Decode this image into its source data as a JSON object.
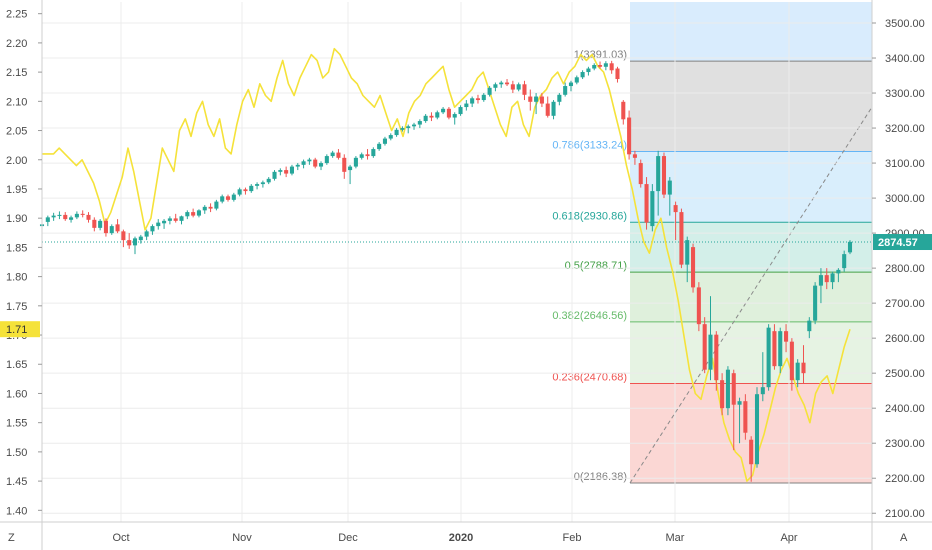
{
  "chart_data": {
    "type": "candlestick",
    "left_axis": {
      "ticks": [
        "2.25",
        "2.20",
        "2.15",
        "2.10",
        "2.05",
        "2.00",
        "1.95",
        "1.90",
        "1.85",
        "1.80",
        "1.75",
        "1.70",
        "1.65",
        "1.60",
        "1.55",
        "1.50",
        "1.45",
        "1.40"
      ],
      "range": [
        1.38,
        2.27
      ],
      "current_value_label": "1.71",
      "current_value": 1.71,
      "current_value_color": "#f5e23a"
    },
    "right_axis": {
      "ticks": [
        "3500.00",
        "3400.00",
        "3300.00",
        "3200.00",
        "3100.00",
        "3000.00",
        "2900.00",
        "2800.00",
        "2700.00",
        "2600.00",
        "2500.00",
        "2400.00",
        "2300.00",
        "2200.00",
        "2100.00"
      ],
      "range": [
        2075,
        3560
      ],
      "last_price_label": "2874.57",
      "last_price": 2874.57,
      "last_price_color": "#26a69a"
    },
    "x_axis": {
      "labels": [
        "Oct",
        "Nov",
        "Dec",
        "2020",
        "Feb",
        "Mar",
        "Apr"
      ]
    },
    "corner_labels": {
      "left": "Z",
      "right": "A"
    },
    "colors": {
      "up": "#26a69a",
      "down": "#ef5350",
      "overlay_line": "#f5e23a",
      "grid": "#ececec"
    },
    "fibonacci": {
      "levels": [
        {
          "ratio": 1,
          "price": 3391.03,
          "label": "1(3391.03)",
          "color": "#808080",
          "fill": "#e0e0e0"
        },
        {
          "ratio": 0.786,
          "price": 3133.24,
          "label": "0.786(3133.24)",
          "color": "#64b5f6",
          "fill": "#d9eefc"
        },
        {
          "ratio": 0.618,
          "price": 2930.86,
          "label": "0.618(2930.86)",
          "color": "#26a69a",
          "fill": "#d3efe9"
        },
        {
          "ratio": 0.5,
          "price": 2788.71,
          "label": "0.5(2788.71)",
          "color": "#43a047",
          "fill": "#dff0dc"
        },
        {
          "ratio": 0.382,
          "price": 2646.56,
          "label": "0.382(2646.56)",
          "color": "#66bb6a",
          "fill": "#e6f3e3"
        },
        {
          "ratio": 0.236,
          "price": 2470.68,
          "label": "0.236(2470.68)",
          "color": "#ef5350",
          "fill": "#fbd7d4"
        },
        {
          "ratio": 0,
          "price": 2186.38,
          "label": "0(2186.38)",
          "color": "#808080"
        }
      ],
      "upper_extension_fill": "#d9ecfd"
    },
    "candles": [
      {
        "o": 2920,
        "h": 2935,
        "l": 2910,
        "c": 2925
      },
      {
        "o": 2932,
        "h": 2950,
        "l": 2920,
        "c": 2945
      },
      {
        "o": 2945,
        "h": 2958,
        "l": 2935,
        "c": 2950
      },
      {
        "o": 2950,
        "h": 2962,
        "l": 2940,
        "c": 2952
      },
      {
        "o": 2952,
        "h": 2960,
        "l": 2935,
        "c": 2940
      },
      {
        "o": 2938,
        "h": 2950,
        "l": 2930,
        "c": 2945
      },
      {
        "o": 2945,
        "h": 2962,
        "l": 2940,
        "c": 2955
      },
      {
        "o": 2955,
        "h": 2965,
        "l": 2945,
        "c": 2952
      },
      {
        "o": 2952,
        "h": 2960,
        "l": 2930,
        "c": 2938
      },
      {
        "o": 2938,
        "h": 2945,
        "l": 2905,
        "c": 2915
      },
      {
        "o": 2915,
        "h": 2940,
        "l": 2908,
        "c": 2935
      },
      {
        "o": 2935,
        "h": 2942,
        "l": 2890,
        "c": 2900
      },
      {
        "o": 2900,
        "h": 2925,
        "l": 2895,
        "c": 2920
      },
      {
        "o": 2925,
        "h": 2940,
        "l": 2900,
        "c": 2905
      },
      {
        "o": 2905,
        "h": 2910,
        "l": 2860,
        "c": 2880
      },
      {
        "o": 2880,
        "h": 2900,
        "l": 2855,
        "c": 2865
      },
      {
        "o": 2865,
        "h": 2890,
        "l": 2840,
        "c": 2885
      },
      {
        "o": 2880,
        "h": 2895,
        "l": 2870,
        "c": 2890
      },
      {
        "o": 2890,
        "h": 2910,
        "l": 2880,
        "c": 2905
      },
      {
        "o": 2905,
        "h": 2925,
        "l": 2895,
        "c": 2920
      },
      {
        "o": 2920,
        "h": 2940,
        "l": 2910,
        "c": 2930
      },
      {
        "o": 2928,
        "h": 2940,
        "l": 2912,
        "c": 2935
      },
      {
        "o": 2935,
        "h": 2948,
        "l": 2925,
        "c": 2942
      },
      {
        "o": 2942,
        "h": 2955,
        "l": 2930,
        "c": 2935
      },
      {
        "o": 2935,
        "h": 2950,
        "l": 2925,
        "c": 2948
      },
      {
        "o": 2948,
        "h": 2965,
        "l": 2940,
        "c": 2960
      },
      {
        "o": 2960,
        "h": 2970,
        "l": 2945,
        "c": 2950
      },
      {
        "o": 2950,
        "h": 2968,
        "l": 2945,
        "c": 2965
      },
      {
        "o": 2965,
        "h": 2980,
        "l": 2955,
        "c": 2975
      },
      {
        "o": 2975,
        "h": 2985,
        "l": 2960,
        "c": 2970
      },
      {
        "o": 2970,
        "h": 2995,
        "l": 2965,
        "c": 2990
      },
      {
        "o": 2990,
        "h": 3010,
        "l": 2985,
        "c": 3005
      },
      {
        "o": 3005,
        "h": 3010,
        "l": 2990,
        "c": 2995
      },
      {
        "o": 2995,
        "h": 3015,
        "l": 2990,
        "c": 3010
      },
      {
        "o": 3010,
        "h": 3030,
        "l": 3005,
        "c": 3025
      },
      {
        "o": 3025,
        "h": 3030,
        "l": 3010,
        "c": 3020
      },
      {
        "o": 3020,
        "h": 3040,
        "l": 3015,
        "c": 3035
      },
      {
        "o": 3035,
        "h": 3045,
        "l": 3025,
        "c": 3040
      },
      {
        "o": 3040,
        "h": 3050,
        "l": 3030,
        "c": 3045
      },
      {
        "o": 3045,
        "h": 3060,
        "l": 3040,
        "c": 3055
      },
      {
        "o": 3055,
        "h": 3080,
        "l": 3050,
        "c": 3075
      },
      {
        "o": 3075,
        "h": 3085,
        "l": 3065,
        "c": 3080
      },
      {
        "o": 3080,
        "h": 3090,
        "l": 3060,
        "c": 3070
      },
      {
        "o": 3070,
        "h": 3095,
        "l": 3065,
        "c": 3090
      },
      {
        "o": 3090,
        "h": 3100,
        "l": 3080,
        "c": 3095
      },
      {
        "o": 3095,
        "h": 3110,
        "l": 3085,
        "c": 3105
      },
      {
        "o": 3105,
        "h": 3115,
        "l": 3095,
        "c": 3110
      },
      {
        "o": 3110,
        "h": 3115,
        "l": 3085,
        "c": 3090
      },
      {
        "o": 3090,
        "h": 3105,
        "l": 3080,
        "c": 3100
      },
      {
        "o": 3100,
        "h": 3125,
        "l": 3095,
        "c": 3120
      },
      {
        "o": 3120,
        "h": 3135,
        "l": 3115,
        "c": 3130
      },
      {
        "o": 3130,
        "h": 3140,
        "l": 3110,
        "c": 3115
      },
      {
        "o": 3115,
        "h": 3125,
        "l": 3055,
        "c": 3075
      },
      {
        "o": 3080,
        "h": 3095,
        "l": 3040,
        "c": 3090
      },
      {
        "o": 3090,
        "h": 3120,
        "l": 3085,
        "c": 3115
      },
      {
        "o": 3115,
        "h": 3130,
        "l": 3110,
        "c": 3125
      },
      {
        "o": 3125,
        "h": 3140,
        "l": 3110,
        "c": 3120
      },
      {
        "o": 3120,
        "h": 3145,
        "l": 3115,
        "c": 3140
      },
      {
        "o": 3140,
        "h": 3160,
        "l": 3135,
        "c": 3155
      },
      {
        "o": 3155,
        "h": 3175,
        "l": 3150,
        "c": 3170
      },
      {
        "o": 3170,
        "h": 3185,
        "l": 3165,
        "c": 3180
      },
      {
        "o": 3180,
        "h": 3200,
        "l": 3175,
        "c": 3195
      },
      {
        "o": 3195,
        "h": 3205,
        "l": 3190,
        "c": 3200
      },
      {
        "o": 3200,
        "h": 3210,
        "l": 3185,
        "c": 3205
      },
      {
        "o": 3205,
        "h": 3215,
        "l": 3195,
        "c": 3210
      },
      {
        "o": 3210,
        "h": 3225,
        "l": 3200,
        "c": 3220
      },
      {
        "o": 3220,
        "h": 3240,
        "l": 3215,
        "c": 3235
      },
      {
        "o": 3235,
        "h": 3245,
        "l": 3220,
        "c": 3230
      },
      {
        "o": 3230,
        "h": 3250,
        "l": 3225,
        "c": 3245
      },
      {
        "o": 3245,
        "h": 3260,
        "l": 3240,
        "c": 3255
      },
      {
        "o": 3255,
        "h": 3260,
        "l": 3225,
        "c": 3230
      },
      {
        "o": 3230,
        "h": 3245,
        "l": 3210,
        "c": 3240
      },
      {
        "o": 3240,
        "h": 3265,
        "l": 3235,
        "c": 3260
      },
      {
        "o": 3260,
        "h": 3280,
        "l": 3250,
        "c": 3270
      },
      {
        "o": 3270,
        "h": 3290,
        "l": 3260,
        "c": 3285
      },
      {
        "o": 3285,
        "h": 3295,
        "l": 3270,
        "c": 3280
      },
      {
        "o": 3280,
        "h": 3300,
        "l": 3275,
        "c": 3295
      },
      {
        "o": 3295,
        "h": 3320,
        "l": 3290,
        "c": 3315
      },
      {
        "o": 3315,
        "h": 3330,
        "l": 3305,
        "c": 3325
      },
      {
        "o": 3325,
        "h": 3335,
        "l": 3315,
        "c": 3330
      },
      {
        "o": 3330,
        "h": 3340,
        "l": 3320,
        "c": 3325
      },
      {
        "o": 3325,
        "h": 3335,
        "l": 3300,
        "c": 3310
      },
      {
        "o": 3310,
        "h": 3330,
        "l": 3305,
        "c": 3325
      },
      {
        "o": 3325,
        "h": 3335,
        "l": 3280,
        "c": 3295
      },
      {
        "o": 3290,
        "h": 3310,
        "l": 3250,
        "c": 3275
      },
      {
        "o": 3275,
        "h": 3300,
        "l": 3240,
        "c": 3290
      },
      {
        "o": 3290,
        "h": 3300,
        "l": 3260,
        "c": 3270
      },
      {
        "o": 3270,
        "h": 3290,
        "l": 3230,
        "c": 3235
      },
      {
        "o": 3235,
        "h": 3280,
        "l": 3225,
        "c": 3275
      },
      {
        "o": 3275,
        "h": 3300,
        "l": 3265,
        "c": 3295
      },
      {
        "o": 3295,
        "h": 3330,
        "l": 3290,
        "c": 3320
      },
      {
        "o": 3320,
        "h": 3335,
        "l": 3305,
        "c": 3330
      },
      {
        "o": 3330,
        "h": 3350,
        "l": 3325,
        "c": 3345
      },
      {
        "o": 3345,
        "h": 3365,
        "l": 3340,
        "c": 3360
      },
      {
        "o": 3360,
        "h": 3375,
        "l": 3350,
        "c": 3370
      },
      {
        "o": 3370,
        "h": 3385,
        "l": 3365,
        "c": 3380
      },
      {
        "o": 3380,
        "h": 3390,
        "l": 3370,
        "c": 3375
      },
      {
        "o": 3375,
        "h": 3391,
        "l": 3365,
        "c": 3385
      },
      {
        "o": 3385,
        "h": 3392,
        "l": 3355,
        "c": 3365
      },
      {
        "o": 3370,
        "h": 3375,
        "l": 3330,
        "c": 3340
      },
      {
        "o": 3275,
        "h": 3280,
        "l": 3210,
        "c": 3225
      },
      {
        "o": 3230,
        "h": 3250,
        "l": 3110,
        "c": 3125
      },
      {
        "o": 3125,
        "h": 3135,
        "l": 3095,
        "c": 3115
      },
      {
        "o": 3100,
        "h": 3110,
        "l": 3030,
        "c": 3040
      },
      {
        "o": 3040,
        "h": 3060,
        "l": 2910,
        "c": 2930
      },
      {
        "o": 2920,
        "h": 3040,
        "l": 2905,
        "c": 3020
      },
      {
        "o": 3020,
        "h": 3135,
        "l": 2950,
        "c": 3120
      },
      {
        "o": 3120,
        "h": 3130,
        "l": 3000,
        "c": 3010
      },
      {
        "o": 3010,
        "h": 3060,
        "l": 2950,
        "c": 3050
      },
      {
        "o": 2980,
        "h": 2990,
        "l": 2880,
        "c": 2960
      },
      {
        "o": 2960,
        "h": 2970,
        "l": 2800,
        "c": 2810
      },
      {
        "o": 2810,
        "h": 2890,
        "l": 2760,
        "c": 2880
      },
      {
        "o": 2860,
        "h": 2870,
        "l": 2730,
        "c": 2745
      },
      {
        "o": 2745,
        "h": 2760,
        "l": 2620,
        "c": 2640
      },
      {
        "o": 2640,
        "h": 2660,
        "l": 2500,
        "c": 2510
      },
      {
        "o": 2510,
        "h": 2720,
        "l": 2480,
        "c": 2610
      },
      {
        "o": 2610,
        "h": 2620,
        "l": 2450,
        "c": 2480
      },
      {
        "o": 2480,
        "h": 2500,
        "l": 2380,
        "c": 2400
      },
      {
        "o": 2400,
        "h": 2520,
        "l": 2380,
        "c": 2510
      },
      {
        "o": 2500,
        "h": 2510,
        "l": 2280,
        "c": 2410
      },
      {
        "o": 2410,
        "h": 2430,
        "l": 2300,
        "c": 2420
      },
      {
        "o": 2420,
        "h": 2440,
        "l": 2310,
        "c": 2330
      },
      {
        "o": 2310,
        "h": 2320,
        "l": 2190,
        "c": 2240
      },
      {
        "o": 2240,
        "h": 2460,
        "l": 2230,
        "c": 2440
      },
      {
        "o": 2440,
        "h": 2560,
        "l": 2420,
        "c": 2460
      },
      {
        "o": 2460,
        "h": 2640,
        "l": 2450,
        "c": 2630
      },
      {
        "o": 2620,
        "h": 2640,
        "l": 2510,
        "c": 2520
      },
      {
        "o": 2520,
        "h": 2630,
        "l": 2500,
        "c": 2620
      },
      {
        "o": 2620,
        "h": 2640,
        "l": 2560,
        "c": 2590
      },
      {
        "o": 2590,
        "h": 2600,
        "l": 2450,
        "c": 2480
      },
      {
        "o": 2480,
        "h": 2540,
        "l": 2460,
        "c": 2530
      },
      {
        "o": 2530,
        "h": 2580,
        "l": 2470,
        "c": 2500
      },
      {
        "o": 2620,
        "h": 2660,
        "l": 2600,
        "c": 2650
      },
      {
        "o": 2650,
        "h": 2760,
        "l": 2640,
        "c": 2750
      },
      {
        "o": 2750,
        "h": 2800,
        "l": 2700,
        "c": 2780
      },
      {
        "o": 2780,
        "h": 2800,
        "l": 2740,
        "c": 2760
      },
      {
        "o": 2760,
        "h": 2790,
        "l": 2740,
        "c": 2785
      },
      {
        "o": 2785,
        "h": 2800,
        "l": 2760,
        "c": 2795
      },
      {
        "o": 2800,
        "h": 2850,
        "l": 2790,
        "c": 2840
      },
      {
        "o": 2845,
        "h": 2880,
        "l": 2840,
        "c": 2875
      }
    ],
    "overlay_series": [
      2.01,
      2.01,
      2.01,
      2.02,
      2.01,
      2.0,
      1.99,
      2.0,
      1.98,
      1.96,
      1.93,
      1.89,
      1.91,
      1.94,
      1.97,
      2.02,
      1.98,
      1.93,
      1.88,
      1.9,
      1.96,
      2.02,
      2.0,
      1.98,
      2.05,
      2.07,
      2.04,
      2.08,
      2.1,
      2.06,
      2.04,
      2.07,
      2.02,
      2.01,
      2.06,
      2.1,
      2.12,
      2.09,
      2.13,
      2.11,
      2.1,
      2.14,
      2.17,
      2.13,
      2.11,
      2.14,
      2.16,
      2.18,
      2.17,
      2.14,
      2.15,
      2.19,
      2.18,
      2.16,
      2.14,
      2.13,
      2.11,
      2.1,
      2.09,
      2.11,
      2.08,
      2.05,
      2.07,
      2.04,
      2.08,
      2.1,
      2.11,
      2.13,
      2.14,
      2.15,
      2.16,
      2.12,
      2.09,
      2.1,
      2.11,
      2.12,
      2.14,
      2.15,
      2.12,
      2.09,
      2.06,
      2.04,
      2.09,
      2.1,
      2.06,
      2.04,
      2.09,
      2.11,
      2.12,
      2.14,
      2.15,
      2.13,
      2.15,
      2.16,
      2.18,
      2.17,
      2.18,
      2.16,
      2.15,
      2.12,
      2.08,
      2.04,
      1.99,
      1.95,
      1.9,
      1.86,
      1.84,
      1.88,
      1.9,
      1.85,
      1.81,
      1.76,
      1.7,
      1.64,
      1.6,
      1.59,
      1.63,
      1.66,
      1.6,
      1.55,
      1.52,
      1.5,
      1.49,
      1.45,
      1.46,
      1.5,
      1.53,
      1.57,
      1.61,
      1.64,
      1.66,
      1.63,
      1.6,
      1.58,
      1.55,
      1.6,
      1.62,
      1.63,
      1.6,
      1.64,
      1.68,
      1.71
    ]
  }
}
